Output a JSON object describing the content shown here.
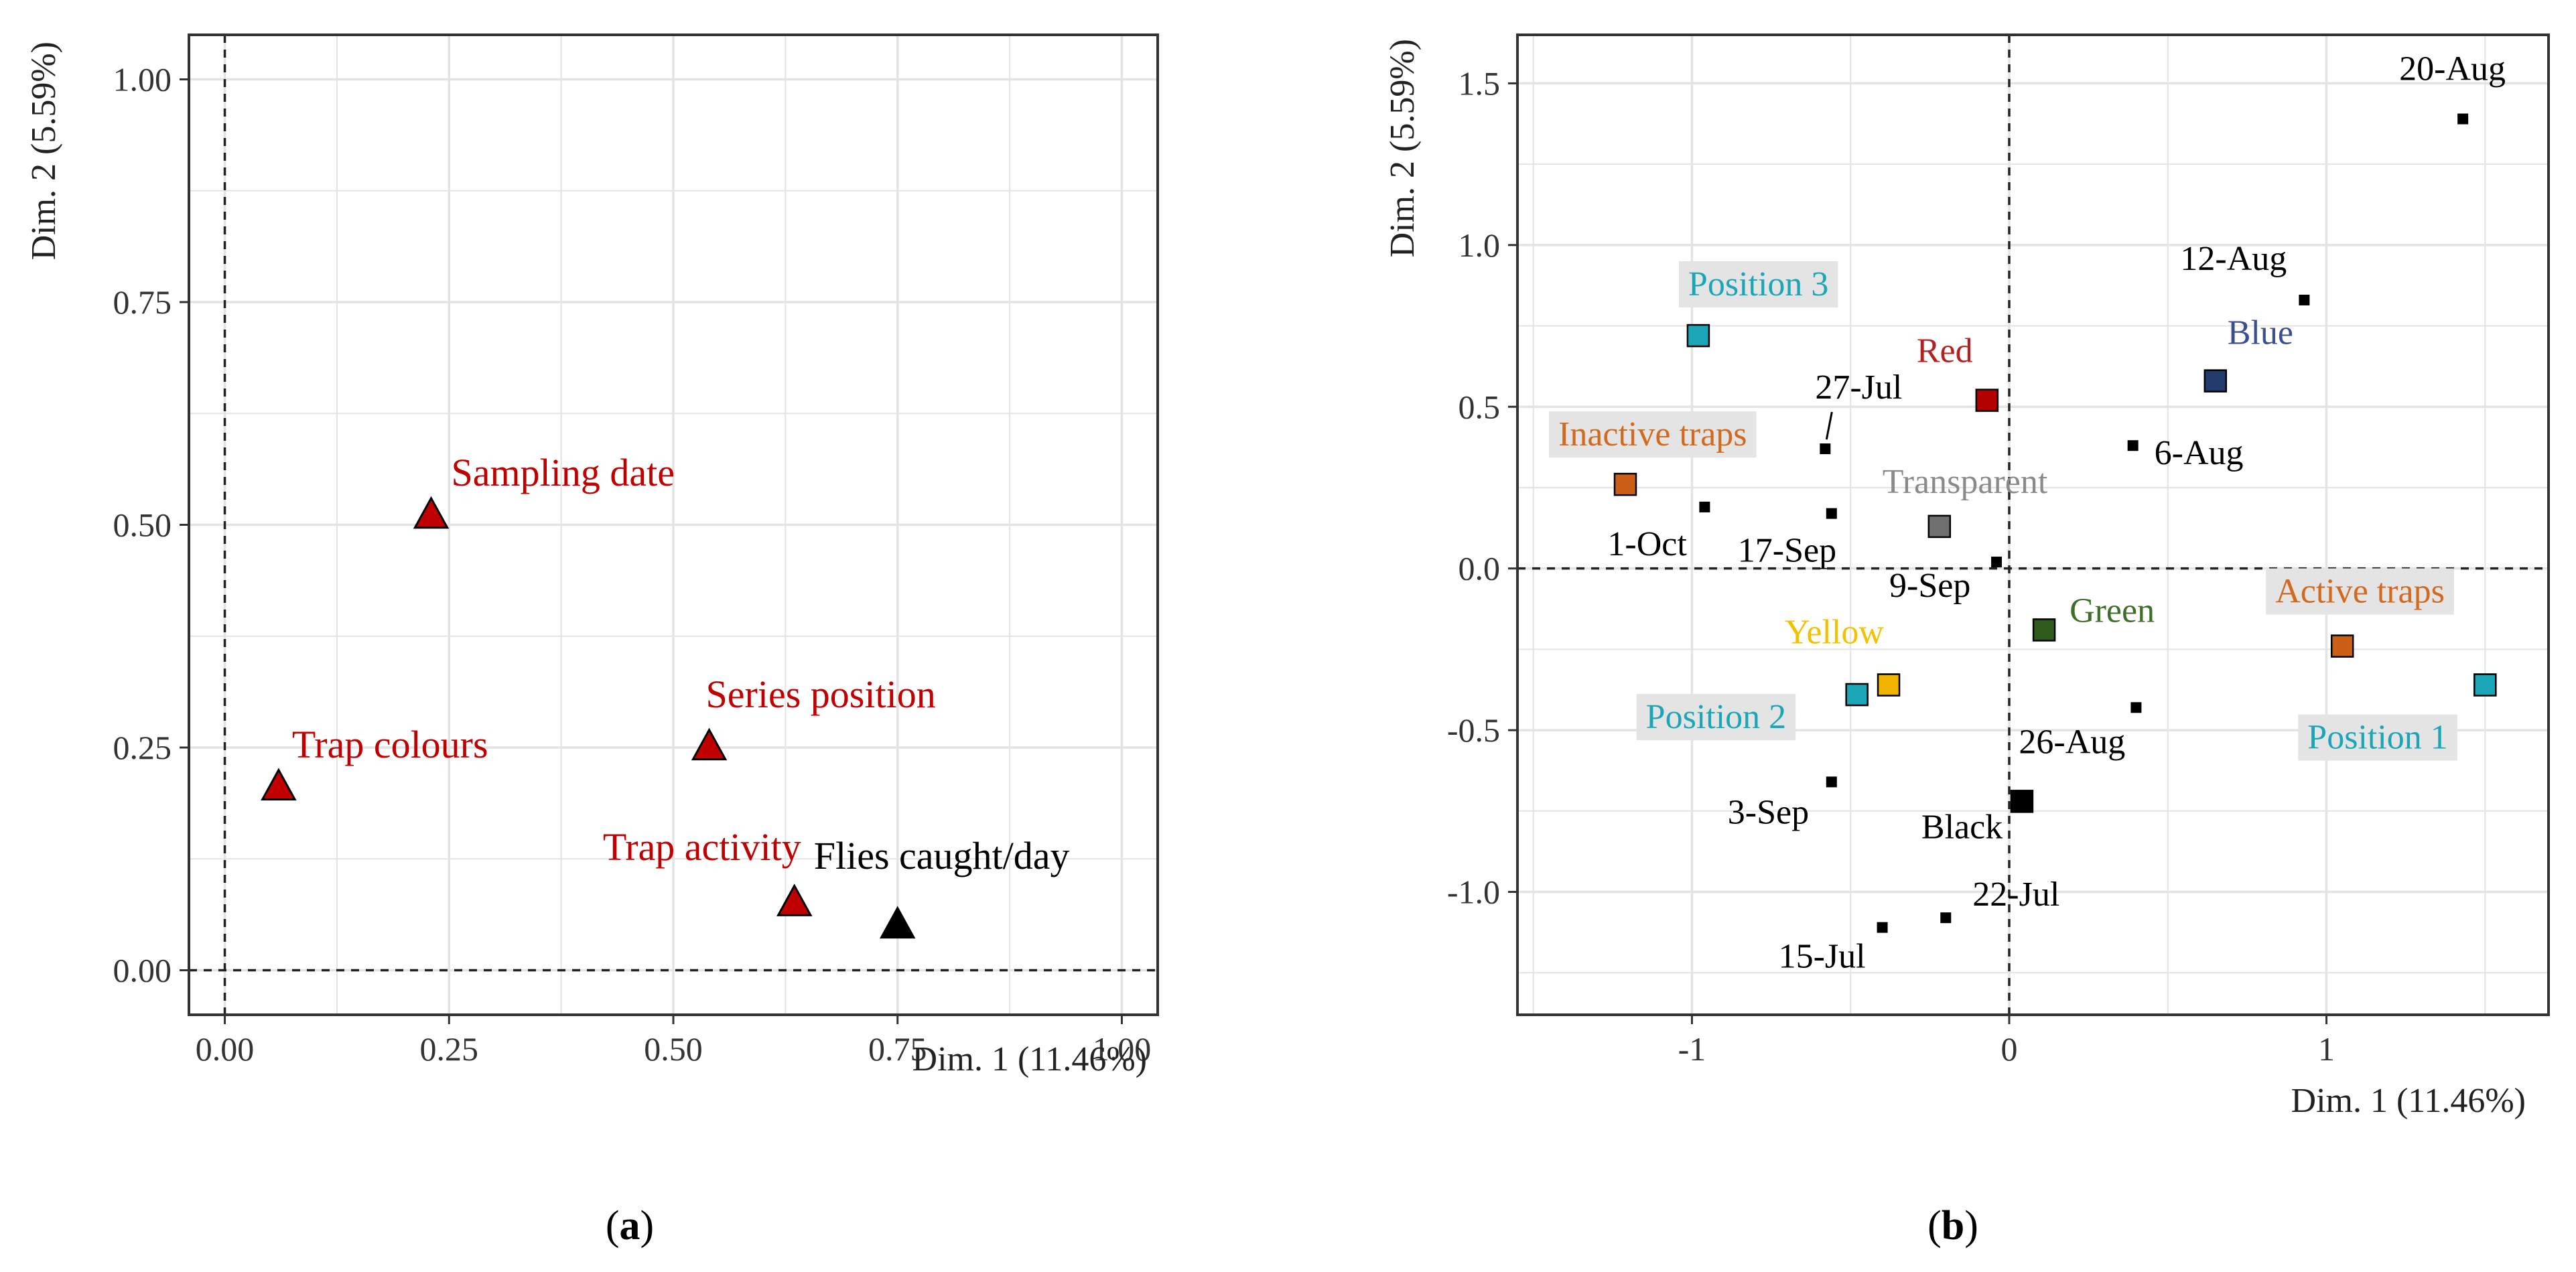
{
  "panel_a": {
    "caption_letter": "a",
    "chart_data": {
      "type": "scatter",
      "xlabel": "Dim. 1 (11.46%)",
      "ylabel": "Dim. 2 (5.59%)",
      "xlim": [
        -0.04,
        1.04
      ],
      "ylim": [
        -0.05,
        1.05
      ],
      "x_ticks": [
        0.0,
        0.25,
        0.5,
        0.75,
        1.0
      ],
      "x_tick_labels": [
        "0.00",
        "0.25",
        "0.50",
        "0.75",
        "1.00"
      ],
      "y_ticks": [
        0.0,
        0.25,
        0.5,
        0.75,
        1.0
      ],
      "y_tick_labels": [
        "0.00",
        "0.25",
        "0.50",
        "0.75",
        "1.00"
      ],
      "grid": true,
      "reference_lines": {
        "x": 0,
        "y": 0
      },
      "points": [
        {
          "label": "Sampling date",
          "x": 0.23,
          "y": 0.51,
          "color": "#c00000",
          "label_color": "#c00000",
          "marker": "triangle"
        },
        {
          "label": "Series position",
          "x": 0.54,
          "y": 0.25,
          "color": "#c00000",
          "label_color": "#c00000",
          "marker": "triangle"
        },
        {
          "label": "Trap colours",
          "x": 0.06,
          "y": 0.205,
          "color": "#c00000",
          "label_color": "#c00000",
          "marker": "triangle"
        },
        {
          "label": "Trap activity",
          "x": 0.635,
          "y": 0.075,
          "color": "#c00000",
          "label_color": "#c00000",
          "marker": "triangle"
        },
        {
          "label": "Flies caught/day",
          "x": 0.75,
          "y": 0.05,
          "color": "#000000",
          "label_color": "#000000",
          "marker": "triangle"
        }
      ]
    }
  },
  "panel_b": {
    "caption_letter": "b",
    "chart_data": {
      "type": "scatter",
      "xlabel": "Dim. 1 (11.46%)",
      "ylabel": "Dim. 2 (5.59%)",
      "xlim": [
        -1.55,
        1.7
      ],
      "ylim": [
        -1.38,
        1.65
      ],
      "x_ticks": [
        -1,
        0,
        1
      ],
      "x_tick_labels": [
        "-1",
        "0",
        "1"
      ],
      "y_ticks": [
        -1.0,
        -0.5,
        0.0,
        0.5,
        1.0,
        1.5
      ],
      "y_tick_labels": [
        "-1.0",
        "-0.5",
        "0.0",
        "0.5",
        "1.0",
        "1.5"
      ],
      "grid": true,
      "reference_lines": {
        "x": 0,
        "y": 0
      },
      "points": [
        {
          "label": "20-Aug",
          "x": 1.43,
          "y": 1.39,
          "color": "#000000",
          "marker": "small-square",
          "label_color": "#000000",
          "boxed": false
        },
        {
          "label": "12-Aug",
          "x": 0.93,
          "y": 0.83,
          "color": "#000000",
          "marker": "small-square",
          "label_color": "#000000",
          "boxed": false
        },
        {
          "label": "6-Aug",
          "x": 0.39,
          "y": 0.38,
          "color": "#000000",
          "marker": "small-square",
          "label_color": "#000000",
          "boxed": false
        },
        {
          "label": "27-Jul",
          "x": -0.58,
          "y": 0.37,
          "color": "#000000",
          "marker": "small-square",
          "label_color": "#000000",
          "boxed": false
        },
        {
          "label": "1-Oct",
          "x": -0.96,
          "y": 0.19,
          "color": "#000000",
          "marker": "small-square",
          "label_color": "#000000",
          "boxed": false
        },
        {
          "label": "17-Sep",
          "x": -0.56,
          "y": 0.17,
          "color": "#000000",
          "marker": "small-square",
          "label_color": "#000000",
          "boxed": false
        },
        {
          "label": "9-Sep",
          "x": -0.04,
          "y": 0.02,
          "color": "#000000",
          "marker": "small-square",
          "label_color": "#000000",
          "boxed": false
        },
        {
          "label": "26-Aug",
          "x": 0.4,
          "y": -0.43,
          "color": "#000000",
          "marker": "small-square",
          "label_color": "#000000",
          "boxed": false
        },
        {
          "label": "3-Sep",
          "x": -0.56,
          "y": -0.66,
          "color": "#000000",
          "marker": "small-square",
          "label_color": "#000000",
          "boxed": false
        },
        {
          "label": "22-Jul",
          "x": -0.2,
          "y": -1.08,
          "color": "#000000",
          "marker": "small-square",
          "label_color": "#000000",
          "boxed": false
        },
        {
          "label": "15-Jul",
          "x": -0.4,
          "y": -1.11,
          "color": "#000000",
          "marker": "small-square",
          "label_color": "#000000",
          "boxed": false
        },
        {
          "label": "Position 3",
          "x": -0.98,
          "y": 0.72,
          "color": "#1aa6b7",
          "marker": "square",
          "label_color": "#1aa6b7",
          "boxed": true
        },
        {
          "label": "Red",
          "x": -0.07,
          "y": 0.52,
          "color": "#b30000",
          "marker": "square",
          "label_color": "#b22222",
          "boxed": false
        },
        {
          "label": "Blue",
          "x": 0.65,
          "y": 0.58,
          "color": "#223c6e",
          "marker": "square",
          "label_color": "#3b4f8f",
          "boxed": false
        },
        {
          "label": "Inactive traps",
          "x": -1.21,
          "y": 0.26,
          "color": "#cc5f18",
          "marker": "square",
          "label_color": "#d2691e",
          "boxed": true
        },
        {
          "label": "Transparent",
          "x": -0.22,
          "y": 0.13,
          "color": "#707070",
          "marker": "square",
          "label_color": "#8a8a8a",
          "boxed": false
        },
        {
          "label": "Green",
          "x": 0.11,
          "y": -0.19,
          "color": "#2e5a1c",
          "marker": "square",
          "label_color": "#3f6e2a",
          "boxed": false
        },
        {
          "label": "Yellow",
          "x": -0.38,
          "y": -0.36,
          "color": "#f0b400",
          "marker": "square",
          "label_color": "#f2c200",
          "boxed": false
        },
        {
          "label": "Position 2",
          "x": -0.48,
          "y": -0.39,
          "color": "#1aa6b7",
          "marker": "square",
          "label_color": "#1aa6b7",
          "boxed": true
        },
        {
          "label": "Active traps",
          "x": 1.05,
          "y": -0.24,
          "color": "#cc5f18",
          "marker": "square",
          "label_color": "#d2691e",
          "boxed": true
        },
        {
          "label": "Position 1",
          "x": 1.5,
          "y": -0.36,
          "color": "#1aa6b7",
          "marker": "square",
          "label_color": "#1aa6b7",
          "boxed": true
        },
        {
          "label": "Black",
          "x": 0.04,
          "y": -0.72,
          "color": "#000000",
          "marker": "square",
          "label_color": "#000000",
          "boxed": false
        }
      ]
    }
  }
}
